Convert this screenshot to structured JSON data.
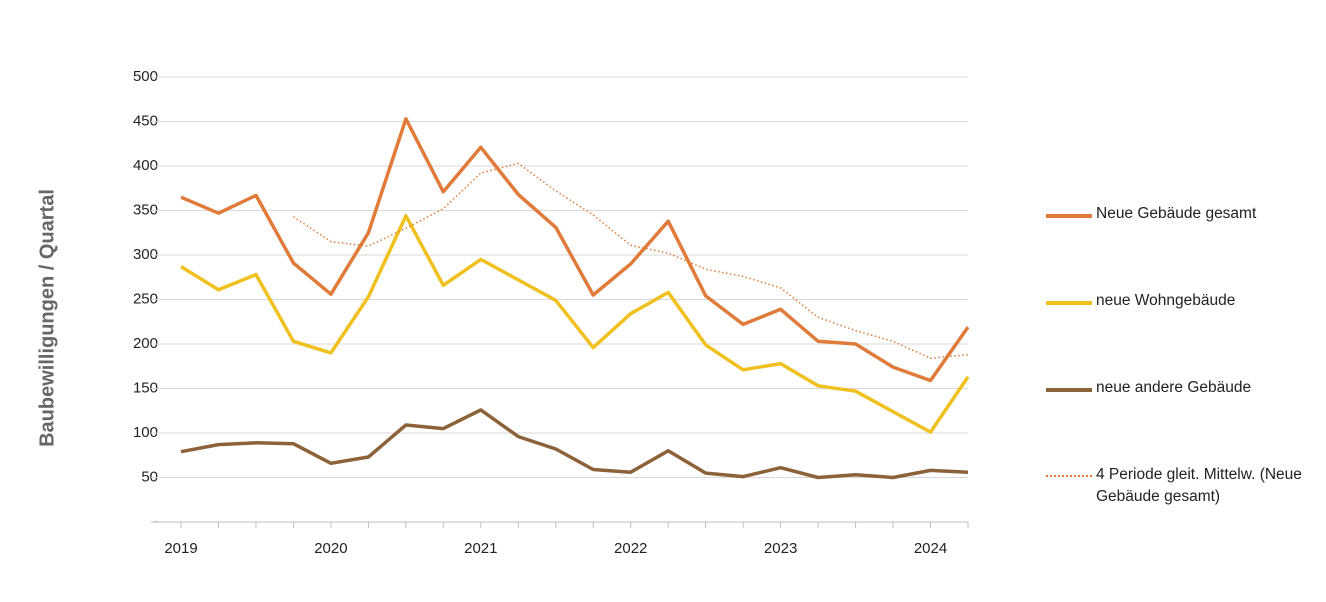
{
  "chart_data": {
    "type": "line",
    "y_label": "Baubewilligungen / Quartal",
    "categories": [
      "2019",
      null,
      null,
      null,
      "2020",
      null,
      null,
      null,
      "2021",
      null,
      null,
      null,
      "2022",
      null,
      null,
      null,
      "2023",
      null,
      null,
      null,
      "2024",
      null
    ],
    "ylim": [
      0,
      500
    ],
    "yticks": [
      {
        "value": 0,
        "label": "-"
      },
      50,
      100,
      150,
      200,
      250,
      300,
      350,
      400,
      450,
      500
    ],
    "grid": true,
    "legend": "right",
    "series": [
      {
        "name": "Neue Gebäude gesamt",
        "color": "#e07b39",
        "style": "solid",
        "values": [
          365,
          347,
          367,
          291,
          256,
          325,
          453,
          371,
          421,
          368,
          331,
          255,
          290,
          338,
          254,
          222,
          239,
          203,
          200,
          174,
          159,
          219
        ]
      },
      {
        "name": "neue Wohngebäude",
        "color": "#f0c01e",
        "style": "solid",
        "values": [
          287,
          261,
          278,
          203,
          190,
          253,
          344,
          266,
          295,
          272,
          249,
          196,
          234,
          258,
          199,
          171,
          178,
          153,
          147,
          124,
          101,
          163
        ]
      },
      {
        "name": "neue andere Gebäude",
        "color": "#8c6239",
        "style": "solid",
        "values": [
          79,
          87,
          89,
          88,
          66,
          73,
          109,
          105,
          126,
          96,
          82,
          59,
          56,
          80,
          55,
          51,
          61,
          50,
          53,
          50,
          58,
          56
        ]
      },
      {
        "name": "4 Periode gleit. Mittelw. (Neue Gebäude gesamt)",
        "color": "#e07b39",
        "style": "dotted",
        "values": [
          null,
          null,
          null,
          343,
          315,
          310,
          330,
          352,
          392,
          403,
          372,
          345,
          311,
          302,
          284,
          276,
          263,
          230,
          215,
          203,
          184,
          188
        ]
      }
    ]
  }
}
